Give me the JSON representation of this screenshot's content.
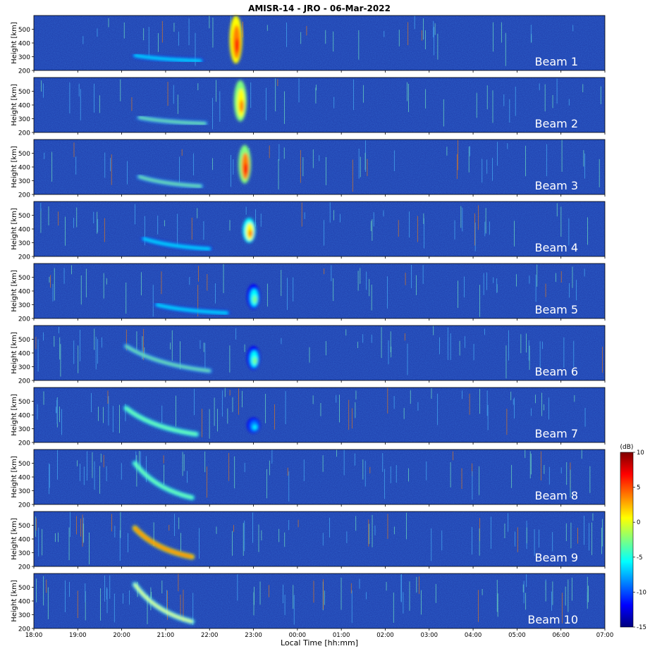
{
  "chart_data": {
    "type": "heatmap",
    "title": "AMISR-14 - JRO - 06-Mar-2022",
    "xlabel": "Local Time [hh:mm]",
    "ylabel": "Height [km]",
    "xlim": [
      "18:00",
      "07:00"
    ],
    "xticks": [
      "18:00",
      "19:00",
      "20:00",
      "21:00",
      "22:00",
      "23:00",
      "00:00",
      "01:00",
      "02:00",
      "03:00",
      "04:00",
      "05:00",
      "06:00",
      "07:00"
    ],
    "ylim": [
      200,
      600
    ],
    "yticks": [
      200,
      300,
      400,
      500
    ],
    "colorbar": {
      "label": "(dB)",
      "range": [
        -15,
        10
      ],
      "ticks": [
        10,
        5,
        0,
        -5,
        -10,
        -15
      ],
      "colormap": "jet"
    },
    "panels": [
      {
        "label": "Beam 1",
        "features": [
          {
            "kind": "plume",
            "t": 22.6,
            "hmin": 250,
            "hmax": 600,
            "intensity": 8
          },
          {
            "kind": "streak",
            "t0": 20.3,
            "t1": 21.8,
            "h0": 310,
            "h1": 270,
            "intensity": -5
          }
        ]
      },
      {
        "label": "Beam 2",
        "features": [
          {
            "kind": "plume",
            "t": 22.7,
            "hmin": 280,
            "hmax": 580,
            "intensity": 4
          },
          {
            "kind": "streak",
            "t0": 20.4,
            "t1": 21.9,
            "h0": 310,
            "h1": 265,
            "intensity": -4
          }
        ]
      },
      {
        "label": "Beam 3",
        "features": [
          {
            "kind": "plume",
            "t": 22.8,
            "hmin": 280,
            "hmax": 560,
            "intensity": 7
          },
          {
            "kind": "streak",
            "t0": 20.4,
            "t1": 21.8,
            "h0": 330,
            "h1": 260,
            "intensity": -4
          }
        ]
      },
      {
        "label": "Beam 4",
        "features": [
          {
            "kind": "plume",
            "t": 22.9,
            "hmin": 300,
            "hmax": 480,
            "intensity": 3
          },
          {
            "kind": "streak",
            "t0": 20.5,
            "t1": 22.0,
            "h0": 330,
            "h1": 255,
            "intensity": -5
          }
        ]
      },
      {
        "label": "Beam 5",
        "features": [
          {
            "kind": "plume",
            "t": 23.0,
            "hmin": 270,
            "hmax": 450,
            "intensity": -4
          },
          {
            "kind": "streak",
            "t0": 20.8,
            "t1": 22.4,
            "h0": 300,
            "h1": 240,
            "intensity": -6
          }
        ]
      },
      {
        "label": "Beam 6",
        "features": [
          {
            "kind": "plume",
            "t": 23.0,
            "hmin": 280,
            "hmax": 450,
            "intensity": -3
          },
          {
            "kind": "streak",
            "t0": 20.1,
            "t1": 22.0,
            "h0": 450,
            "h1": 270,
            "intensity": -2
          }
        ]
      },
      {
        "label": "Beam 7",
        "features": [
          {
            "kind": "plume",
            "t": 23.0,
            "hmin": 270,
            "hmax": 380,
            "intensity": -5
          },
          {
            "kind": "streak",
            "t0": 20.1,
            "t1": 21.7,
            "h0": 450,
            "h1": 260,
            "intensity": -1
          }
        ]
      },
      {
        "label": "Beam 8",
        "features": [
          {
            "kind": "streak",
            "t0": 20.3,
            "t1": 21.6,
            "h0": 500,
            "h1": 250,
            "intensity": -1
          }
        ]
      },
      {
        "label": "Beam 9",
        "features": [
          {
            "kind": "streak",
            "t0": 20.3,
            "t1": 21.6,
            "h0": 480,
            "h1": 270,
            "intensity": 6
          }
        ]
      },
      {
        "label": "Beam 10",
        "features": [
          {
            "kind": "streak",
            "t0": 20.3,
            "t1": 21.6,
            "h0": 520,
            "h1": 250,
            "intensity": 0
          }
        ]
      }
    ]
  },
  "colors": {
    "background_field": "#1e3aa8",
    "colormap_stops": [
      "#00007f",
      "#0000ff",
      "#007fff",
      "#00ffff",
      "#7fff7f",
      "#ffff00",
      "#ff7f00",
      "#ff0000",
      "#7f0000"
    ]
  }
}
